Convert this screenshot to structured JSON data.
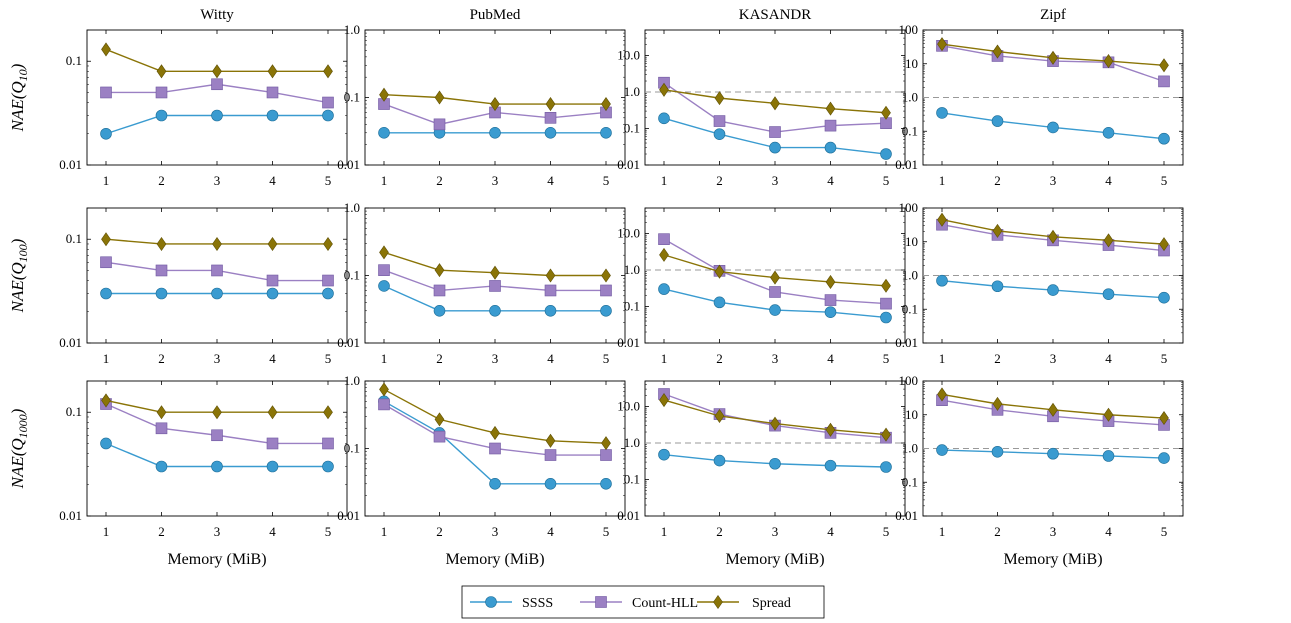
{
  "colors": {
    "SSSS": "#3a9bd0",
    "Count-HLL": "#9b80c3",
    "Spread": "#8a7407",
    "ref_line": "#999999"
  },
  "legend": [
    {
      "label": "SSSS",
      "marker": "circle"
    },
    {
      "label": "Count-HLL",
      "marker": "square"
    },
    {
      "label": "Spread",
      "marker": "diamond"
    }
  ],
  "row_labels": [
    {
      "prefix": "NAE(Q",
      "sub": "10",
      "suffix": ")"
    },
    {
      "prefix": "NAE(Q",
      "sub": "100",
      "suffix": ")"
    },
    {
      "prefix": "NAE(Q",
      "sub": "1000",
      "suffix": ")"
    }
  ],
  "chart_data": [
    {
      "type": "line",
      "title": "Witty",
      "xlabel": "",
      "ylabel": "NAE(Q10)",
      "x": [
        1,
        2,
        3,
        4,
        5
      ],
      "yscale": "log",
      "ylim": [
        0.01,
        0.2
      ],
      "yticks": [
        "0.01",
        "0.1"
      ],
      "ref_line": null,
      "series": [
        {
          "name": "SSSS",
          "values": [
            0.02,
            0.03,
            0.03,
            0.03,
            0.03
          ]
        },
        {
          "name": "Count-HLL",
          "values": [
            0.05,
            0.05,
            0.06,
            0.05,
            0.04
          ]
        },
        {
          "name": "Spread",
          "values": [
            0.13,
            0.08,
            0.08,
            0.08,
            0.08
          ]
        }
      ]
    },
    {
      "type": "line",
      "title": "PubMed",
      "xlabel": "",
      "ylabel": "",
      "x": [
        1,
        2,
        3,
        4,
        5
      ],
      "yscale": "log",
      "ylim": [
        0.01,
        1.0
      ],
      "yticks": [
        "0.01",
        "0.1",
        "1.0"
      ],
      "ref_line": null,
      "series": [
        {
          "name": "SSSS",
          "values": [
            0.03,
            0.03,
            0.03,
            0.03,
            0.03
          ]
        },
        {
          "name": "Count-HLL",
          "values": [
            0.08,
            0.04,
            0.06,
            0.05,
            0.06
          ]
        },
        {
          "name": "Spread",
          "values": [
            0.11,
            0.1,
            0.08,
            0.08,
            0.08
          ]
        }
      ]
    },
    {
      "type": "line",
      "title": "KASANDR",
      "xlabel": "",
      "ylabel": "",
      "x": [
        1,
        2,
        3,
        4,
        5
      ],
      "yscale": "log",
      "ylim": [
        0.01,
        50
      ],
      "yticks": [
        "0.01",
        "0.1",
        "1.0",
        "10.0"
      ],
      "ref_line": 1.0,
      "series": [
        {
          "name": "SSSS",
          "values": [
            0.19,
            0.07,
            0.03,
            0.03,
            0.02
          ]
        },
        {
          "name": "Count-HLL",
          "values": [
            1.8,
            0.16,
            0.08,
            0.12,
            0.14
          ]
        },
        {
          "name": "Spread",
          "values": [
            1.15,
            0.68,
            0.49,
            0.35,
            0.27
          ]
        }
      ]
    },
    {
      "type": "line",
      "title": "Zipf",
      "xlabel": "",
      "ylabel": "",
      "x": [
        1,
        2,
        3,
        4,
        5
      ],
      "yscale": "log",
      "ylim": [
        0.01,
        100
      ],
      "yticks": [
        "0.01",
        "0.1",
        "1.0",
        "10",
        "100"
      ],
      "ref_line": 1.0,
      "series": [
        {
          "name": "SSSS",
          "values": [
            0.35,
            0.2,
            0.13,
            0.09,
            0.06
          ]
        },
        {
          "name": "Count-HLL",
          "values": [
            34,
            17,
            12,
            11,
            3
          ]
        },
        {
          "name": "Spread",
          "values": [
            38,
            23,
            15,
            12,
            9
          ]
        }
      ]
    },
    {
      "type": "line",
      "title": "",
      "xlabel": "",
      "ylabel": "NAE(Q100)",
      "x": [
        1,
        2,
        3,
        4,
        5
      ],
      "yscale": "log",
      "ylim": [
        0.01,
        0.2
      ],
      "yticks": [
        "0.01",
        "0.1"
      ],
      "ref_line": null,
      "series": [
        {
          "name": "SSSS",
          "values": [
            0.03,
            0.03,
            0.03,
            0.03,
            0.03
          ]
        },
        {
          "name": "Count-HLL",
          "values": [
            0.06,
            0.05,
            0.05,
            0.04,
            0.04
          ]
        },
        {
          "name": "Spread",
          "values": [
            0.1,
            0.09,
            0.09,
            0.09,
            0.09
          ]
        }
      ]
    },
    {
      "type": "line",
      "title": "",
      "xlabel": "",
      "ylabel": "",
      "x": [
        1,
        2,
        3,
        4,
        5
      ],
      "yscale": "log",
      "ylim": [
        0.01,
        1.0
      ],
      "yticks": [
        "0.01",
        "0.1",
        "1.0"
      ],
      "ref_line": null,
      "series": [
        {
          "name": "SSSS",
          "values": [
            0.07,
            0.03,
            0.03,
            0.03,
            0.03
          ]
        },
        {
          "name": "Count-HLL",
          "values": [
            0.12,
            0.06,
            0.07,
            0.06,
            0.06
          ]
        },
        {
          "name": "Spread",
          "values": [
            0.22,
            0.12,
            0.11,
            0.1,
            0.1
          ]
        }
      ]
    },
    {
      "type": "line",
      "title": "",
      "xlabel": "",
      "ylabel": "",
      "x": [
        1,
        2,
        3,
        4,
        5
      ],
      "yscale": "log",
      "ylim": [
        0.01,
        50
      ],
      "yticks": [
        "0.01",
        "0.1",
        "1.0",
        "10.0"
      ],
      "ref_line": 1.0,
      "series": [
        {
          "name": "SSSS",
          "values": [
            0.3,
            0.13,
            0.08,
            0.07,
            0.05
          ]
        },
        {
          "name": "Count-HLL",
          "values": [
            7,
            0.95,
            0.25,
            0.15,
            0.12
          ]
        },
        {
          "name": "Spread",
          "values": [
            2.6,
            0.9,
            0.62,
            0.47,
            0.37
          ]
        }
      ]
    },
    {
      "type": "line",
      "title": "",
      "xlabel": "",
      "ylabel": "",
      "x": [
        1,
        2,
        3,
        4,
        5
      ],
      "yscale": "log",
      "ylim": [
        0.01,
        100
      ],
      "yticks": [
        "0.01",
        "0.1",
        "1.0",
        "10",
        "100"
      ],
      "ref_line": 1.0,
      "series": [
        {
          "name": "SSSS",
          "values": [
            0.7,
            0.48,
            0.37,
            0.28,
            0.22
          ]
        },
        {
          "name": "Count-HLL",
          "values": [
            32,
            16,
            11,
            8,
            5.5
          ]
        },
        {
          "name": "Spread",
          "values": [
            45,
            21,
            14,
            11,
            8.5
          ]
        }
      ]
    },
    {
      "type": "line",
      "title": "",
      "xlabel": "Memory (MiB)",
      "ylabel": "NAE(Q1000)",
      "x": [
        1,
        2,
        3,
        4,
        5
      ],
      "yscale": "log",
      "ylim": [
        0.01,
        0.2
      ],
      "yticks": [
        "0.01",
        "0.1"
      ],
      "ref_line": null,
      "series": [
        {
          "name": "SSSS",
          "values": [
            0.05,
            0.03,
            0.03,
            0.03,
            0.03
          ]
        },
        {
          "name": "Count-HLL",
          "values": [
            0.12,
            0.07,
            0.06,
            0.05,
            0.05
          ]
        },
        {
          "name": "Spread",
          "values": [
            0.13,
            0.1,
            0.1,
            0.1,
            0.1
          ]
        }
      ]
    },
    {
      "type": "line",
      "title": "",
      "xlabel": "Memory (MiB)",
      "ylabel": "",
      "x": [
        1,
        2,
        3,
        4,
        5
      ],
      "yscale": "log",
      "ylim": [
        0.01,
        1.0
      ],
      "yticks": [
        "0.01",
        "0.1",
        "1.0"
      ],
      "ref_line": null,
      "series": [
        {
          "name": "SSSS",
          "values": [
            0.5,
            0.17,
            0.03,
            0.03,
            0.03
          ]
        },
        {
          "name": "Count-HLL",
          "values": [
            0.45,
            0.15,
            0.1,
            0.08,
            0.08
          ]
        },
        {
          "name": "Spread",
          "values": [
            0.75,
            0.27,
            0.17,
            0.13,
            0.12
          ]
        }
      ]
    },
    {
      "type": "line",
      "title": "",
      "xlabel": "Memory (MiB)",
      "ylabel": "",
      "x": [
        1,
        2,
        3,
        4,
        5
      ],
      "yscale": "log",
      "ylim": [
        0.01,
        50
      ],
      "yticks": [
        "0.01",
        "0.1",
        "1.0",
        "10.0"
      ],
      "ref_line": 1.0,
      "series": [
        {
          "name": "SSSS",
          "values": [
            0.48,
            0.33,
            0.27,
            0.24,
            0.22
          ]
        },
        {
          "name": "Count-HLL",
          "values": [
            22,
            6.2,
            3,
            1.9,
            1.4
          ]
        },
        {
          "name": "Spread",
          "values": [
            15,
            5.5,
            3.4,
            2.3,
            1.7
          ]
        }
      ]
    },
    {
      "type": "line",
      "title": "",
      "xlabel": "Memory (MiB)",
      "ylabel": "",
      "x": [
        1,
        2,
        3,
        4,
        5
      ],
      "yscale": "log",
      "ylim": [
        0.01,
        100
      ],
      "yticks": [
        "0.01",
        "0.1",
        "1.0",
        "10",
        "100"
      ],
      "ref_line": 1.0,
      "series": [
        {
          "name": "SSSS",
          "values": [
            0.9,
            0.8,
            0.7,
            0.6,
            0.52
          ]
        },
        {
          "name": "Count-HLL",
          "values": [
            27,
            14,
            9,
            6.5,
            5
          ]
        },
        {
          "name": "Spread",
          "values": [
            40,
            21,
            14,
            10,
            8
          ]
        }
      ]
    }
  ]
}
